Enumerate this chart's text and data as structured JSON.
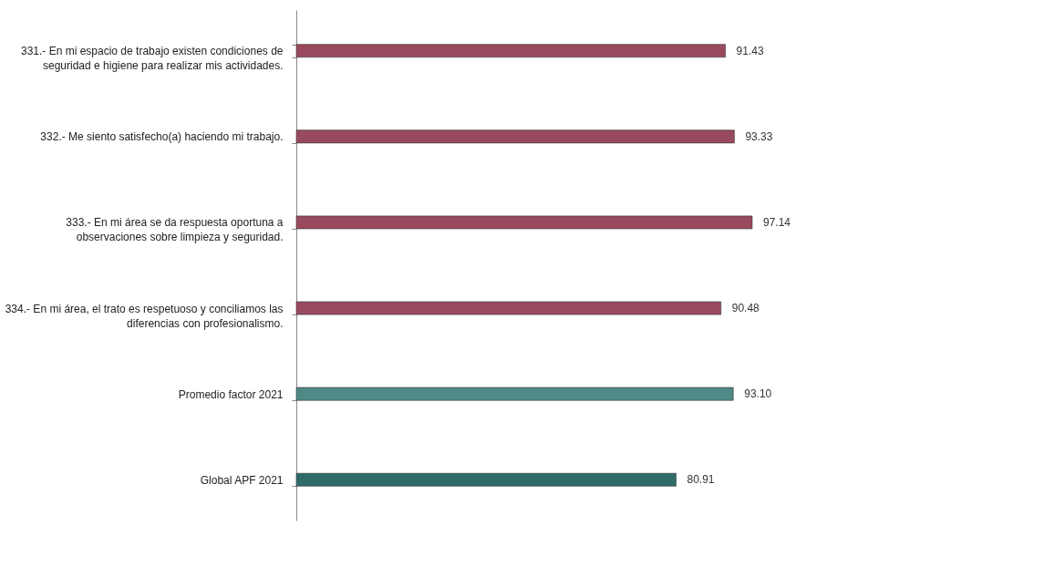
{
  "chart_data": {
    "type": "bar",
    "orientation": "horizontal",
    "data_labels": true,
    "grid": false,
    "categories": [
      "331.- En mi espacio de trabajo existen condiciones de\nseguridad e higiene para realizar mis actividades.",
      "332.- Me siento satisfecho(a) haciendo mi trabajo.",
      "333.- En mi área se da respuesta oportuna a\nobservaciones sobre limpieza y seguridad.",
      "334.- En mi área, el trato es respetuoso y conciliamos las\ndiferencias con profesionalismo.",
      "Promedio factor 2021",
      "Global APF 2021"
    ],
    "values": [
      91.43,
      93.33,
      97.14,
      90.48,
      93.1,
      80.91
    ],
    "value_labels": [
      "91.43",
      "93.33",
      "97.14",
      "90.48",
      "93.10",
      "80.91"
    ],
    "colors": [
      "#9a4a5e",
      "#9a4a5e",
      "#9a4a5e",
      "#9a4a5e",
      "#4f8a86",
      "#2f6b68"
    ]
  }
}
